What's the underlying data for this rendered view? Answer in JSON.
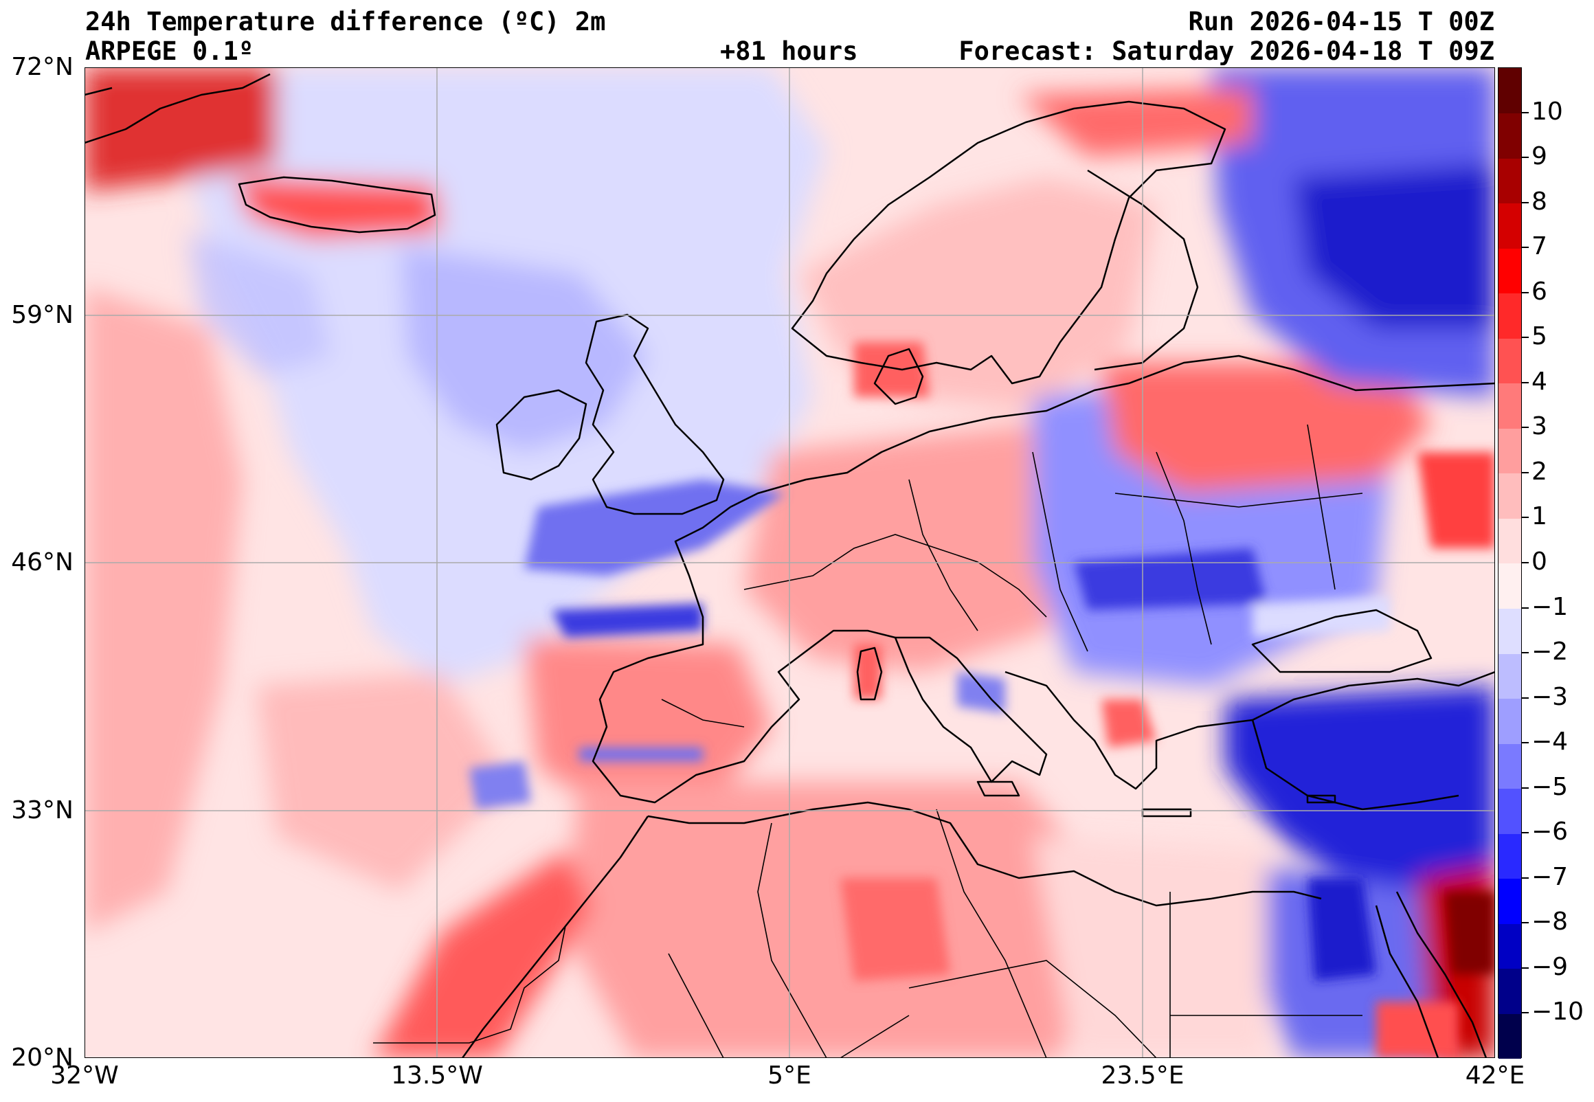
{
  "header": {
    "title_line1": "24h Temperature difference (ºC) 2m",
    "title_line2": "ARPEGE 0.1º",
    "run": "Run 2026-04-15 T 00Z",
    "lead": "+81 hours",
    "forecast": "Forecast: Saturday 2026-04-18 T 09Z"
  },
  "map": {
    "lat_ticks": [
      "72°N",
      "59°N",
      "46°N",
      "33°N",
      "20°N"
    ],
    "lon_ticks": [
      "32°W",
      "13.5°W",
      "5°E",
      "23.5°E",
      "42°E"
    ],
    "lat_range": [
      20,
      72
    ],
    "lon_range": [
      -32,
      42
    ]
  },
  "colorbar": {
    "ticks": [
      "10",
      "9",
      "8",
      "7",
      "6",
      "5",
      "4",
      "3",
      "2",
      "1",
      "0",
      "−1",
      "−2",
      "−3",
      "−4",
      "−5",
      "−6",
      "−7",
      "−8",
      "−9",
      "−10"
    ],
    "range": [
      -11,
      11
    ],
    "colors": [
      "#00004c",
      "#00008a",
      "#0000c4",
      "#0000ff",
      "#2929ff",
      "#5252ff",
      "#7a7aff",
      "#9e9eff",
      "#bdbdff",
      "#dedeff",
      "#fff0f0",
      "#ffdede",
      "#ffbdbd",
      "#ff9e9e",
      "#ff7a7a",
      "#ff5252",
      "#ff2929",
      "#ff0000",
      "#d40000",
      "#a80000",
      "#800000",
      "#600000"
    ]
  },
  "legend_colors": {
    "warm": "#e03030",
    "cold": "#2020e0",
    "neutral_warm": "#ffe0e0",
    "neutral_cold": "#e0e0ff"
  }
}
